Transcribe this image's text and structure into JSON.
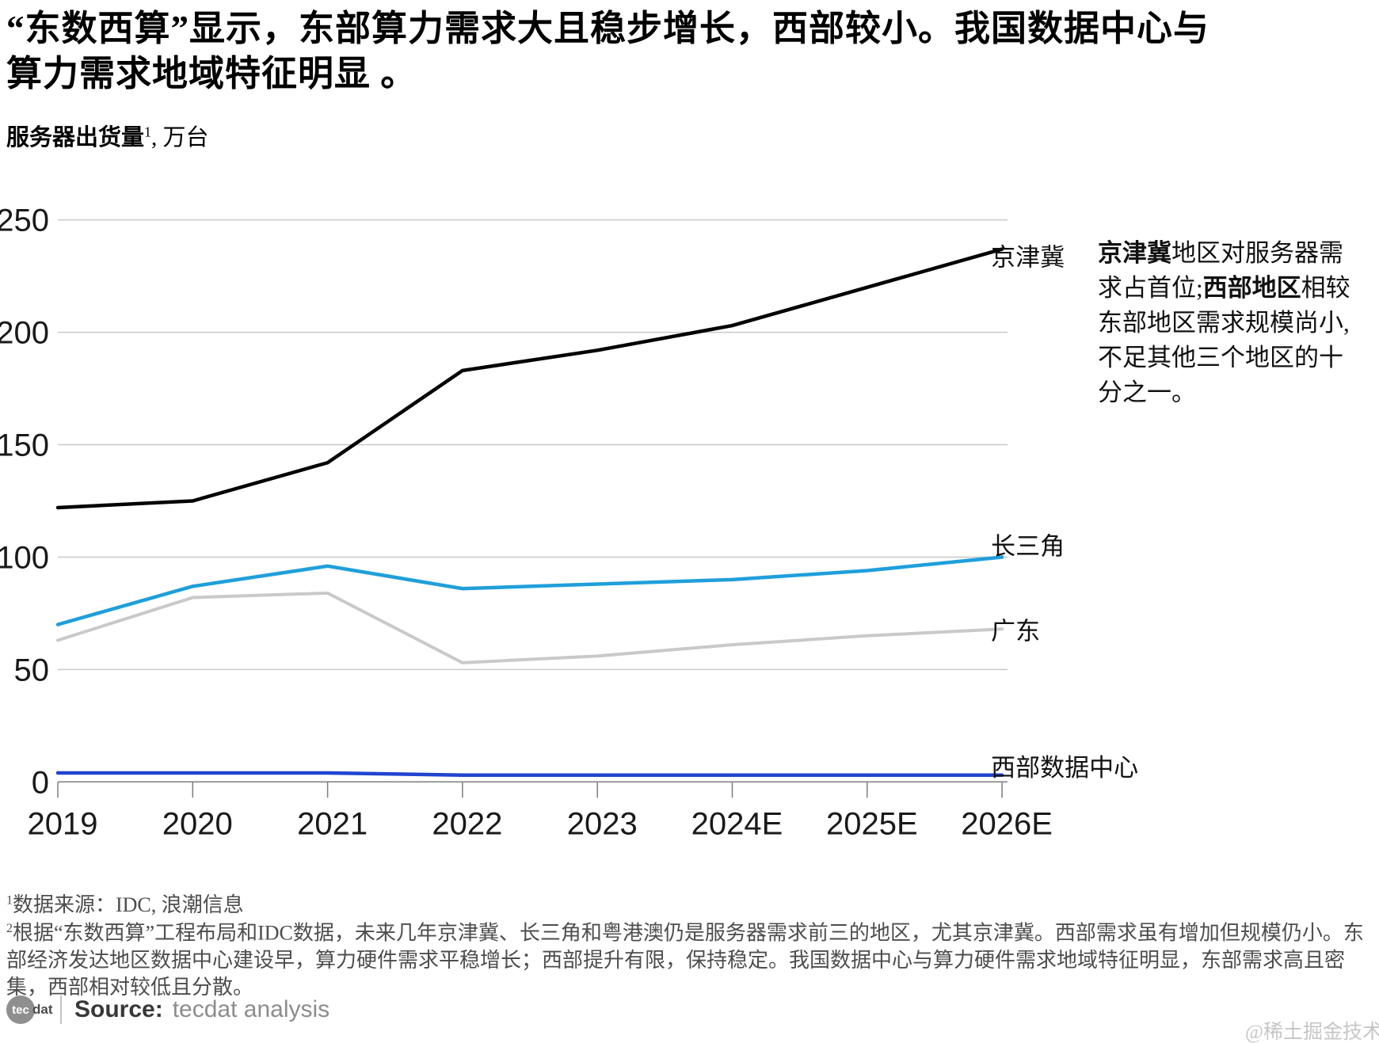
{
  "header": {
    "title": "“东数西算”显示，东部算力需求大且稳步增长，西部较小。我国数据中心与算力需求地域特征明显 。"
  },
  "subtitle": {
    "bold_text": "服务器出货量",
    "sup": "1",
    "rest": ", 万台"
  },
  "annotation": {
    "segments": [
      {
        "text": "京津冀",
        "bold": true
      },
      {
        "text": "地区对服务器需求占首位;",
        "bold": false
      },
      {
        "text": "西部地区",
        "bold": true
      },
      {
        "text": "相较东部地区需求规模尚小,不足其他三个地区的十分之一。",
        "bold": false
      }
    ]
  },
  "chart_data": {
    "type": "line",
    "title": "服务器出货量, 万台",
    "categories": [
      "2019",
      "2020",
      "2021",
      "2022",
      "2023",
      "2024E",
      "2025E",
      "2026E"
    ],
    "series": [
      {
        "name": "京津冀",
        "color": "#000000",
        "values": [
          122,
          125,
          142,
          183,
          192,
          203,
          220,
          237
        ]
      },
      {
        "name": "长三角",
        "color": "#1f9fdb",
        "values": [
          70,
          87,
          96,
          86,
          88,
          90,
          94,
          100
        ]
      },
      {
        "name": "广东",
        "color": "#c9c9c9",
        "values": [
          63,
          82,
          84,
          53,
          56,
          61,
          65,
          68
        ]
      },
      {
        "name": "西部数据中心",
        "color": "#2144d0",
        "values": [
          4,
          4,
          4,
          3,
          3,
          3,
          3,
          3
        ]
      }
    ],
    "ylim": [
      0,
      250
    ],
    "yticks": [
      0,
      50,
      100,
      150,
      200,
      250
    ],
    "xlabel": "",
    "ylabel": "服务器出货量, 万台",
    "grid": "horizontal",
    "legend_position": "line-end-labels",
    "colors": {
      "gridline": "#c8c8c8",
      "axis": "#7d7d7d",
      "tick_label": "#191919",
      "end_label": "#111111"
    }
  },
  "footnotes": {
    "fn1": {
      "sup": "1",
      "text": "数据来源：IDC, 浪潮信息"
    },
    "fn2": {
      "sup": "2",
      "text": "根据“东数西算”工程布局和IDC数据，未来几年京津冀、长三角和粤港澳仍是服务器需求前三的地区，尤其京津冀。西部需求虽有增加但规模仍小。东部经济发达地区数据中心建设早，算力硬件需求平稳增长；西部提升有限，保持稳定。我国数据中心与算力硬件需求地域特征明显，东部需求高且密集，西部相对较低且分散。"
    }
  },
  "source": {
    "logo_circle_text": "tec",
    "logo_suffix_text": "dat",
    "label": "Source:",
    "value": "tecdat analysis"
  },
  "watermark": "@稀土掘金技术社区"
}
